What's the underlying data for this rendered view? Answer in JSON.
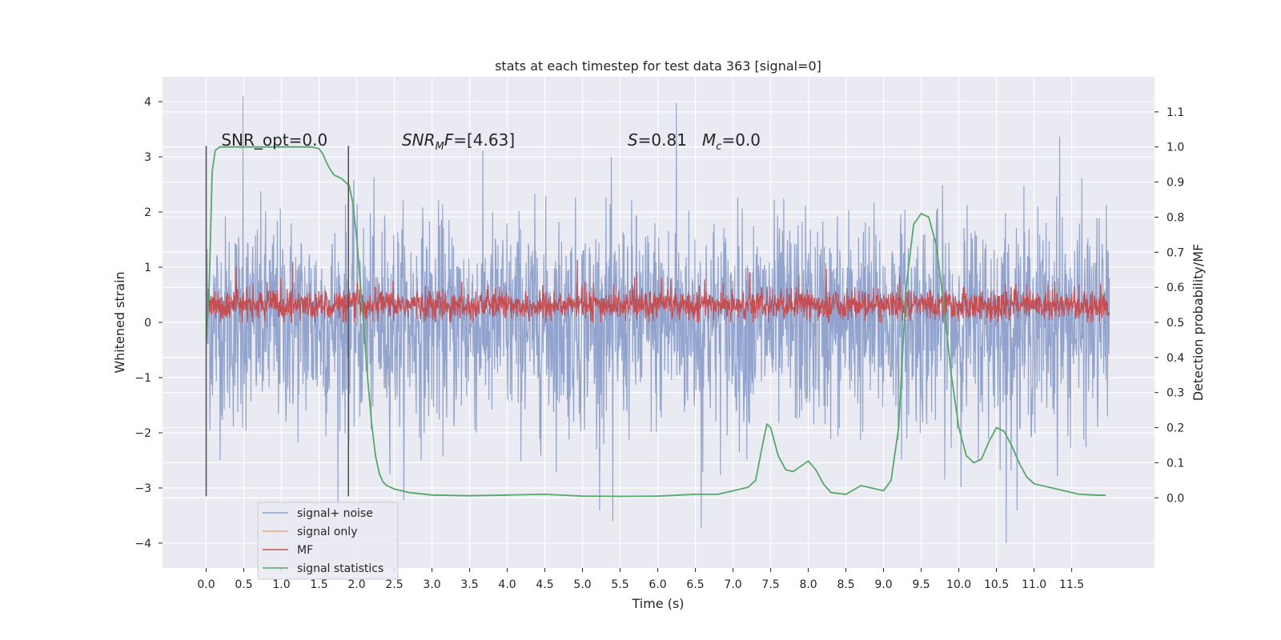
{
  "chart_data": {
    "type": "line",
    "title": "stats at each timestep for test data 363 [signal=0]",
    "xlabel": "Time (s)",
    "ylabel": "Whitened strain",
    "y2label": "Detection probability/MF",
    "xlim": [
      -0.58,
      12.6
    ],
    "ylim": [
      -4.45,
      4.45
    ],
    "y2lim": [
      -0.2,
      1.2
    ],
    "x_ticks": [
      0.0,
      0.5,
      1.0,
      1.5,
      2.0,
      2.5,
      3.0,
      3.5,
      4.0,
      4.5,
      5.0,
      5.5,
      6.0,
      6.5,
      7.0,
      7.5,
      8.0,
      8.5,
      9.0,
      9.5,
      10.0,
      10.5,
      11.0,
      11.5
    ],
    "x_tick_labels": [
      "0.0",
      "0.5",
      "1.0",
      "1.5",
      "2.0",
      "2.5",
      "3.0",
      "3.5",
      "4.0",
      "4.5",
      "5.0",
      "5.5",
      "6.0",
      "6.5",
      "7.0",
      "7.5",
      "8.0",
      "8.5",
      "9.0",
      "9.5",
      "10.0",
      "10.5",
      "11.0",
      "11.5"
    ],
    "y_ticks": [
      4,
      3,
      2,
      1,
      0,
      -1,
      -2,
      -3,
      -4
    ],
    "y_tick_labels": [
      "4",
      "3",
      "2",
      "1",
      "0",
      "−1",
      "−2",
      "−3",
      "−4"
    ],
    "y2_ticks": [
      1.1,
      1.0,
      0.9,
      0.8,
      0.7,
      0.6,
      0.5,
      0.4,
      0.3,
      0.2,
      0.1,
      0.0
    ],
    "y2_tick_labels": [
      "1.1",
      "1.0",
      "0.9",
      "0.8",
      "0.7",
      "0.6",
      "0.5",
      "0.4",
      "0.3",
      "0.2",
      "0.1",
      "0.0"
    ],
    "grid": true,
    "background": "#eaeaf2",
    "legend_position": "lower-left",
    "vlines": [
      {
        "x": 0.0,
        "y_range": [
          -3.15,
          3.2
        ]
      },
      {
        "x": 1.89,
        "y_range": [
          -3.15,
          3.2
        ]
      }
    ],
    "annotations": [
      {
        "text": "SNR_opt=0.0",
        "x": 0.2,
        "y": 3.2
      },
      {
        "text": "SNR_MF=[4.63]",
        "x": 2.6,
        "y": 3.2
      },
      {
        "text": "S=0.81   M_c=0.0",
        "x": 5.6,
        "y": 3.2
      }
    ],
    "series": [
      {
        "name": "signal+ noise",
        "color": "#8da0cb",
        "axis": "left",
        "kind": "noise",
        "x_range": [
          0.0,
          12.0
        ],
        "points": 2400,
        "typical_range": [
          -1.8,
          1.8
        ],
        "max_excursions": [
          {
            "x": 0.49,
            "y": 4.1
          },
          {
            "x": 6.25,
            "y": 3.98
          },
          {
            "x": 11.34,
            "y": 3.37
          },
          {
            "x": 10.63,
            "y": -4.0
          },
          {
            "x": 6.58,
            "y": -3.73
          },
          {
            "x": 5.4,
            "y": -3.6
          }
        ]
      },
      {
        "name": "signal only",
        "color": "#e8a87c",
        "axis": "left",
        "x": [],
        "y": []
      },
      {
        "name": "MF",
        "color": "#c44e52",
        "axis": "right",
        "kind": "noise",
        "x_range": [
          0.0,
          12.0
        ],
        "points": 2400,
        "typical_range": [
          0.5,
          0.6
        ],
        "max_value": 0.68
      },
      {
        "name": "signal statistics",
        "color": "#55a868",
        "axis": "right",
        "x": [
          0.0,
          0.04,
          0.08,
          0.12,
          0.18,
          0.3,
          0.5,
          0.8,
          1.0,
          1.2,
          1.4,
          1.5,
          1.55,
          1.6,
          1.65,
          1.7,
          1.75,
          1.8,
          1.9,
          1.95,
          2.0,
          2.05,
          2.1,
          2.15,
          2.2,
          2.25,
          2.3,
          2.35,
          2.4,
          2.5,
          2.7,
          3.0,
          3.5,
          4.0,
          4.5,
          5.0,
          5.5,
          6.0,
          6.3,
          6.5,
          6.8,
          7.0,
          7.2,
          7.3,
          7.4,
          7.45,
          7.5,
          7.6,
          7.7,
          7.8,
          7.9,
          8.0,
          8.1,
          8.2,
          8.3,
          8.5,
          8.7,
          8.9,
          9.0,
          9.1,
          9.2,
          9.3,
          9.4,
          9.5,
          9.6,
          9.7,
          9.8,
          9.9,
          10.0,
          10.1,
          10.2,
          10.3,
          10.4,
          10.5,
          10.6,
          10.7,
          10.8,
          10.9,
          11.0,
          11.3,
          11.6,
          11.8,
          11.95
        ],
        "y": [
          0.45,
          0.6,
          0.93,
          0.99,
          1.0,
          1.0,
          1.0,
          1.0,
          1.0,
          1.0,
          1.0,
          0.995,
          0.98,
          0.955,
          0.935,
          0.92,
          0.915,
          0.91,
          0.89,
          0.84,
          0.74,
          0.61,
          0.47,
          0.33,
          0.21,
          0.12,
          0.07,
          0.045,
          0.035,
          0.025,
          0.015,
          0.008,
          0.006,
          0.008,
          0.01,
          0.005,
          0.004,
          0.005,
          0.008,
          0.01,
          0.01,
          0.02,
          0.03,
          0.05,
          0.16,
          0.21,
          0.2,
          0.12,
          0.08,
          0.075,
          0.09,
          0.105,
          0.08,
          0.04,
          0.015,
          0.01,
          0.035,
          0.025,
          0.02,
          0.05,
          0.2,
          0.6,
          0.78,
          0.81,
          0.8,
          0.72,
          0.55,
          0.35,
          0.2,
          0.12,
          0.1,
          0.11,
          0.16,
          0.2,
          0.19,
          0.15,
          0.1,
          0.06,
          0.04,
          0.025,
          0.01,
          0.008,
          0.007
        ]
      }
    ]
  }
}
